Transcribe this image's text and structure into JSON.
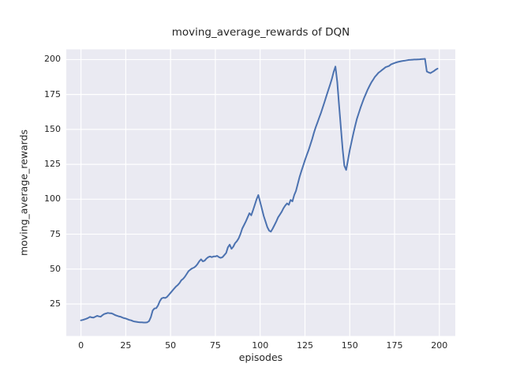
{
  "figure": {
    "title": "moving_average_rewards of DQN",
    "xlabel": "episodes",
    "ylabel": "moving_average_rewards"
  },
  "colors": {
    "line": "#4C72B0",
    "plot_background": "#EAEAF2",
    "grid": "#FFFFFF",
    "figure_background": "#FFFFFF",
    "text": "#262626"
  },
  "chart_data": {
    "type": "line",
    "title": "moving_average_rewards of DQN",
    "xlabel": "episodes",
    "ylabel": "moving_average_rewards",
    "x_ticks": [
      0,
      25,
      50,
      75,
      100,
      125,
      150,
      175,
      200
    ],
    "y_ticks": [
      25,
      50,
      75,
      100,
      125,
      150,
      175,
      200
    ],
    "xlim": [
      -8.2,
      208.9
    ],
    "ylim": [
      2.1,
      207.3
    ],
    "grid": true,
    "legend": false,
    "series": [
      {
        "name": "moving_average_rewards",
        "x_start": 0,
        "x_step": 1,
        "values": [
          13.3,
          13.6,
          14.0,
          14.4,
          15.0,
          15.8,
          15.4,
          15.2,
          15.9,
          16.5,
          16.1,
          15.9,
          17.0,
          17.8,
          18.2,
          18.6,
          18.4,
          18.3,
          17.8,
          17.1,
          16.6,
          16.2,
          15.9,
          15.3,
          14.9,
          14.6,
          14.1,
          13.6,
          13.3,
          12.7,
          12.4,
          12.2,
          12.0,
          11.9,
          11.8,
          11.7,
          11.7,
          11.9,
          12.7,
          15.6,
          20.3,
          21.8,
          22.0,
          24.0,
          27.0,
          29.0,
          29.5,
          29.3,
          30.0,
          31.5,
          33.0,
          34.5,
          36.0,
          37.5,
          38.5,
          40.0,
          42.0,
          43.0,
          44.5,
          46.5,
          48.5,
          49.5,
          50.5,
          51.0,
          52.0,
          53.5,
          55.5,
          57.0,
          55.5,
          56.0,
          57.5,
          58.5,
          59.0,
          58.5,
          59.0,
          59.0,
          59.5,
          58.5,
          58.0,
          58.5,
          60.0,
          61.5,
          65.5,
          67.5,
          64.5,
          66.0,
          68.5,
          70.0,
          72.0,
          75.0,
          79.0,
          81.5,
          84.0,
          87.0,
          90.0,
          88.5,
          92.0,
          96.0,
          100.0,
          103.0,
          98.0,
          93.0,
          88.0,
          84.0,
          80.0,
          77.5,
          76.8,
          79.0,
          81.5,
          84.0,
          87.0,
          89.0,
          91.0,
          93.5,
          95.5,
          97.0,
          96.0,
          99.5,
          98.5,
          103.0,
          106.0,
          111.0,
          116.0,
          120.0,
          124.0,
          128.0,
          131.5,
          135.0,
          139.0,
          143.0,
          147.5,
          151.5,
          155.0,
          158.5,
          162.0,
          166.0,
          170.0,
          174.0,
          178.0,
          182.0,
          186.0,
          191.0,
          195.0,
          184.0,
          168.0,
          152.0,
          136.0,
          124.0,
          121.0,
          128.0,
          135.0,
          141.0,
          147.0,
          152.5,
          157.5,
          161.5,
          165.5,
          169.0,
          172.5,
          175.5,
          178.5,
          181.0,
          183.5,
          185.5,
          187.5,
          189.0,
          190.5,
          191.5,
          192.5,
          193.5,
          194.5,
          195.0,
          195.5,
          196.5,
          197.0,
          197.5,
          198.0,
          198.3,
          198.6,
          198.9,
          199.1,
          199.3,
          199.5,
          199.7,
          199.8,
          199.9,
          200.0,
          200.0,
          200.1,
          200.2,
          200.3,
          200.4,
          200.5,
          191.5,
          190.8,
          190.3,
          191.0,
          191.8,
          192.8,
          193.5
        ]
      }
    ]
  }
}
